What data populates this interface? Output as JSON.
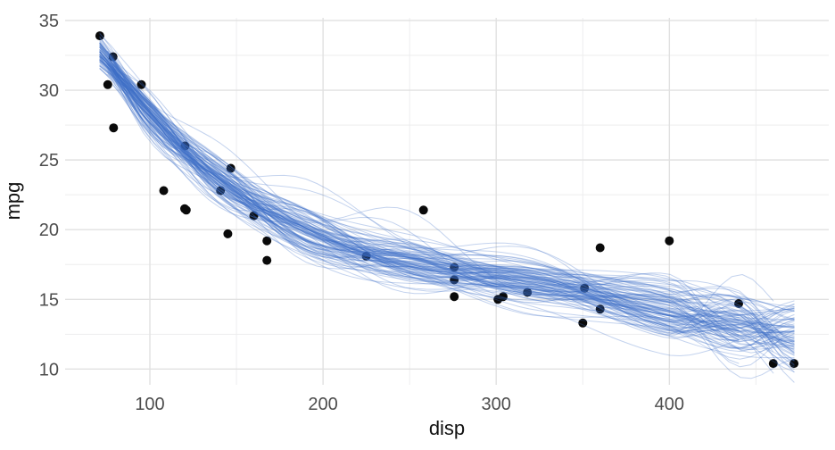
{
  "chart_data": {
    "type": "scatter",
    "title": "",
    "xlabel": "disp",
    "ylabel": "mpg",
    "x_ticks": [
      100,
      200,
      300,
      400
    ],
    "x_tick_labels": [
      "100",
      "200",
      "300",
      "400"
    ],
    "y_ticks": [
      10,
      15,
      20,
      25,
      30,
      35
    ],
    "y_tick_labels": [
      "10",
      "15",
      "20",
      "25",
      "30",
      "35"
    ],
    "x_minor_ticks": [
      150,
      250,
      350,
      450
    ],
    "y_minor_ticks": [
      12.5,
      17.5,
      22.5,
      27.5,
      32.5
    ],
    "xlim": [
      51.05,
      492.05
    ],
    "ylim": [
      8.87,
      35.19
    ],
    "grid": "major+minor",
    "legend": false,
    "points": {
      "name": "mtcars cars (disp, mpg)",
      "xy": [
        [
          160.0,
          21.0
        ],
        [
          160.0,
          21.0
        ],
        [
          108.0,
          22.8
        ],
        [
          258.0,
          21.4
        ],
        [
          360.0,
          18.7
        ],
        [
          225.0,
          18.1
        ],
        [
          360.0,
          14.3
        ],
        [
          146.7,
          24.4
        ],
        [
          140.8,
          22.8
        ],
        [
          167.6,
          19.2
        ],
        [
          167.6,
          17.8
        ],
        [
          275.8,
          16.4
        ],
        [
          275.8,
          17.3
        ],
        [
          275.8,
          15.2
        ],
        [
          472.0,
          10.4
        ],
        [
          460.0,
          10.4
        ],
        [
          440.0,
          14.7
        ],
        [
          78.7,
          32.4
        ],
        [
          75.7,
          30.4
        ],
        [
          71.1,
          33.9
        ],
        [
          120.1,
          21.5
        ],
        [
          318.0,
          15.5
        ],
        [
          304.0,
          15.2
        ],
        [
          350.0,
          13.3
        ],
        [
          400.0,
          19.2
        ],
        [
          79.0,
          27.3
        ],
        [
          120.3,
          26.0
        ],
        [
          95.1,
          30.4
        ],
        [
          351.0,
          15.8
        ],
        [
          145.0,
          19.7
        ],
        [
          301.0,
          15.0
        ],
        [
          121.0,
          21.4
        ]
      ]
    },
    "smooth_ensemble": {
      "name": "bootstrap smooth fits",
      "count": 110,
      "seed": 7,
      "mean_curve": [
        [
          71,
          32.7
        ],
        [
          80,
          31.3
        ],
        [
          95,
          29.0
        ],
        [
          110,
          26.9
        ],
        [
          130,
          24.6
        ],
        [
          150,
          22.7
        ],
        [
          170,
          21.1
        ],
        [
          190,
          19.8
        ],
        [
          210,
          18.8
        ],
        [
          230,
          18.1
        ],
        [
          255,
          17.5
        ],
        [
          280,
          16.9
        ],
        [
          310,
          16.3
        ],
        [
          340,
          15.7
        ],
        [
          370,
          14.9
        ],
        [
          400,
          14.1
        ],
        [
          435,
          13.2
        ],
        [
          472,
          12.2
        ]
      ],
      "spread_knots": [
        71,
        100,
        140,
        190,
        250,
        320,
        400,
        440,
        472
      ],
      "spread_sd": [
        0.6,
        0.7,
        0.8,
        0.85,
        0.75,
        0.85,
        1.05,
        1.2,
        1.35
      ],
      "global_shift_sd": 0.25,
      "bump": {
        "prob": 0.06,
        "center": 205,
        "center_sd": 25,
        "amp_min": 0.8,
        "amp_max": 3.0,
        "width_min": 26,
        "width_max": 46
      },
      "x_start_options": [
        [
          71.1,
          0.72
        ],
        [
          75.7,
          0.14
        ],
        [
          78.7,
          0.14
        ]
      ],
      "x_end_options": [
        [
          472,
          0.72
        ],
        [
          460,
          0.14
        ],
        [
          440,
          0.14
        ]
      ]
    },
    "style": {
      "background": "#ffffff",
      "point_color": "#0a0a0a",
      "point_radius": 5,
      "line_color": "#3b6cc7",
      "line_alpha": 0.3,
      "line_width": 1,
      "grid_major_color": "#e1e1e1",
      "grid_minor_color": "#ededee",
      "tick_label_color": "#4d4d4d",
      "axis_title_color": "#111111",
      "tick_font_size": 20,
      "axis_title_font_size": 22
    }
  }
}
